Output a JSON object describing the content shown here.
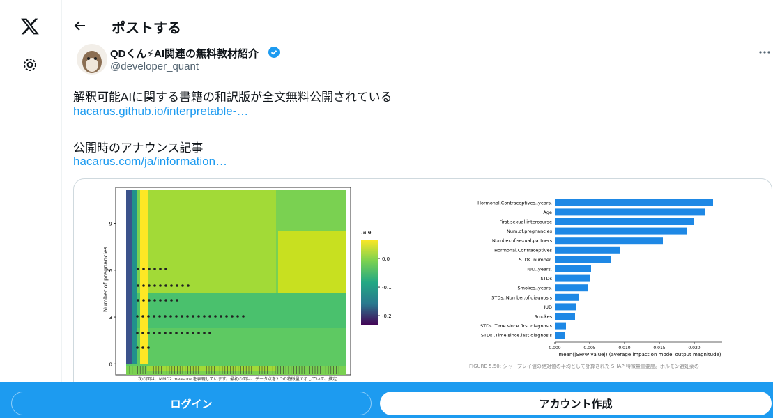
{
  "header": {
    "title": "ポストする"
  },
  "post": {
    "author": {
      "name": "QDくん⚡AI関連の無料教材紹介",
      "handle": "@developer_quant"
    },
    "lines": [
      "解釈可能AIに関する書籍の和訳版が全文無料公開されている",
      "hacarus.github.io/interpretable-…",
      "公開時のアナウンス記事",
      "hacarus.com/ja/information…"
    ]
  },
  "media": {
    "heatmap": {
      "ylabel": "Number of pregnancies",
      "ylim": [
        -0.7,
        11.3
      ],
      "yticks": [
        0,
        3,
        6,
        9
      ],
      "colorbar": {
        "title": ".ale",
        "lim": [
          -0.234,
          0.066
        ],
        "ticks": [
          0.0,
          -0.1,
          -0.2
        ]
      },
      "caption": "次の図は、MMD2 measure を表現しています。最初の図は、データ点を2つの特徴量で示していて、推定"
    },
    "chart": {
      "type": "bar",
      "orientation": "horizontal",
      "color": "#1e88e5",
      "categories": [
        "Hormonal.Contraceptives..years.",
        "Age",
        "First.sexual.intercourse",
        "Num.of.pregnancies",
        "Number.of.sexual.partners",
        "Hormonal.Contraceptives",
        "STDs..number.",
        "IUD..years.",
        "STDs",
        "Smokes..years.",
        "STDs..Number.of.diagnosis",
        "IUD",
        "Smokes",
        "STDs..Time.since.first.diagnosis",
        "STDs..Time.since.last.diagnosis"
      ],
      "values": [
        0.0227,
        0.0216,
        0.02,
        0.019,
        0.0155,
        0.0093,
        0.0081,
        0.0052,
        0.005,
        0.0047,
        0.0035,
        0.003,
        0.0029,
        0.0016,
        0.0015
      ],
      "xlim": [
        0,
        0.024
      ],
      "xticks": [
        {
          "value": 0,
          "label": "0.000"
        },
        {
          "value": 0.005,
          "label": "0.005"
        },
        {
          "value": 0.01,
          "label": "0.010"
        },
        {
          "value": 0.015,
          "label": "0.015"
        },
        {
          "value": 0.02,
          "label": "0.020"
        }
      ],
      "xlabel": "mean(|SHAP value|) (average impact on model output magnitude)",
      "caption": "FIGURE 5.50: シャープレイ値の絶対値の平均として計算された SHAP 特徴量重要度。ホルモン避妊薬の"
    }
  },
  "footer": {
    "login": "ログイン",
    "signup": "アカウント作成"
  }
}
